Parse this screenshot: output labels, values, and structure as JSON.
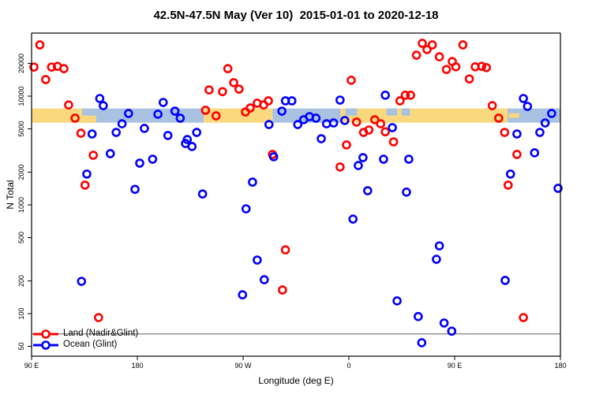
{
  "title": "42.5N-47.5N May (Ver 10)  2015-01-01 to 2020-12-18",
  "chart_data": {
    "type": "scatter",
    "title": "42.5N-47.5N May (Ver 10)  2015-01-01 to 2020-12-18",
    "xlabel": "Longitude (deg E)",
    "ylabel": "N Total",
    "x_axis": {
      "range": [
        90,
        540
      ],
      "note": "longitude axis wraps eastward: 90E > 180 > 90W > 0 > 90E > 180",
      "ticks": [
        {
          "value": 90,
          "label": "90 E"
        },
        {
          "value": 180,
          "label": "180"
        },
        {
          "value": 270,
          "label": "90 W"
        },
        {
          "value": 360,
          "label": "0"
        },
        {
          "value": 450,
          "label": "90 E"
        },
        {
          "value": 540,
          "label": "180"
        }
      ]
    },
    "y_axis": {
      "scale": "log",
      "range": [
        41,
        38000
      ],
      "ticks": [
        50,
        100,
        200,
        500,
        1000,
        2000,
        5000,
        10000,
        20000
      ]
    },
    "grid": false,
    "legend_position": "bottom-left",
    "reference_line": {
      "n": 65,
      "color": "#6e6e6e"
    },
    "mask_band": {
      "n_top": 7700,
      "n_bottom": 5700,
      "land_color": "#FAD87E",
      "ocean_color": "#A9C2E2",
      "segments": [
        {
          "from": 90,
          "to": 133,
          "surface": "land"
        },
        {
          "from": 133,
          "to": 236.5,
          "surface": "ocean"
        },
        {
          "from": 236.5,
          "to": 295,
          "surface": "land"
        },
        {
          "from": 295,
          "to": 353,
          "surface": "ocean"
        },
        {
          "from": 353,
          "to": 495,
          "surface": "land"
        },
        {
          "from": 495,
          "to": 540,
          "surface": "ocean"
        }
      ],
      "patches": [
        {
          "from": 133,
          "to": 145,
          "surface": "land",
          "part": "lower"
        },
        {
          "from": 357,
          "to": 367,
          "surface": "ocean",
          "part": "upper"
        },
        {
          "from": 392,
          "to": 401,
          "surface": "ocean",
          "part": "upper"
        },
        {
          "from": 405,
          "to": 412,
          "surface": "ocean",
          "part": "upper"
        },
        {
          "from": 496,
          "to": 505,
          "surface": "land",
          "part": "middle"
        }
      ]
    },
    "series": [
      {
        "name": "Land (Nadir&Glint)",
        "color": "#FF0000",
        "points": [
          [
            97,
            29600
          ],
          [
            92,
            18500
          ],
          [
            107,
            18500
          ],
          [
            112,
            18800
          ],
          [
            117.5,
            17900
          ],
          [
            102,
            14200
          ],
          [
            121.5,
            8300
          ],
          [
            127,
            6270
          ],
          [
            132,
            4560
          ],
          [
            241,
            11400
          ],
          [
            238,
            7410
          ],
          [
            257,
            17900
          ],
          [
            252.5,
            11000
          ],
          [
            262,
            13300
          ],
          [
            266.5,
            11600
          ],
          [
            247,
            6590
          ],
          [
            272,
            7160
          ],
          [
            276,
            7780
          ],
          [
            282,
            8610
          ],
          [
            287.5,
            8300
          ],
          [
            291.5,
            9050
          ],
          [
            362,
            14000
          ],
          [
            366.5,
            5770
          ],
          [
            377,
            4880
          ],
          [
            372.5,
            4640
          ],
          [
            382,
            6070
          ],
          [
            387,
            5570
          ],
          [
            391,
            4700
          ],
          [
            422.5,
            30600
          ],
          [
            431,
            29600
          ],
          [
            426.5,
            26800
          ],
          [
            457,
            29600
          ],
          [
            417.5,
            23800
          ],
          [
            437,
            23000
          ],
          [
            448,
            20800
          ],
          [
            443,
            17600
          ],
          [
            451,
            18600
          ],
          [
            467.5,
            18600
          ],
          [
            473,
            18800
          ],
          [
            477,
            18300
          ],
          [
            462.5,
            14400
          ],
          [
            403.5,
            9050
          ],
          [
            408,
            10200
          ],
          [
            412.5,
            10200
          ],
          [
            482,
            8180
          ],
          [
            487.5,
            6270
          ],
          [
            492.5,
            4640
          ],
          [
            142.5,
            2860
          ],
          [
            135.5,
            1520
          ],
          [
            358,
            3560
          ],
          [
            295,
            2910
          ],
          [
            352.5,
            2230
          ],
          [
            398,
            3800
          ],
          [
            503,
            2910
          ],
          [
            495.5,
            1520
          ],
          [
            147,
            92
          ],
          [
            306,
            386
          ],
          [
            303.5,
            165
          ],
          [
            508.5,
            92
          ]
        ]
      },
      {
        "name": "Ocean (Glint)",
        "color": "#0000FF",
        "points": [
          [
            148,
            9510
          ],
          [
            151,
            8180
          ],
          [
            202,
            8750
          ],
          [
            172.5,
            6930
          ],
          [
            197.5,
            6820
          ],
          [
            212,
            7280
          ],
          [
            216.5,
            6270
          ],
          [
            167,
            5570
          ],
          [
            162,
            4640
          ],
          [
            186,
            5050
          ],
          [
            141.5,
            4490
          ],
          [
            206,
            4350
          ],
          [
            222.5,
            3990
          ],
          [
            230.5,
            4640
          ],
          [
            306,
            9050
          ],
          [
            311.5,
            9050
          ],
          [
            303,
            7280
          ],
          [
            352.5,
            9200
          ],
          [
            316.5,
            5480
          ],
          [
            321.5,
            6070
          ],
          [
            326.5,
            6480
          ],
          [
            332,
            6270
          ],
          [
            292,
            5480
          ],
          [
            341,
            5570
          ],
          [
            347,
            5670
          ],
          [
            356.5,
            5970
          ],
          [
            336.5,
            4060
          ],
          [
            391,
            10200
          ],
          [
            508.5,
            9510
          ],
          [
            512,
            8050
          ],
          [
            532.5,
            6930
          ],
          [
            527,
            5670
          ],
          [
            397,
            5130
          ],
          [
            503,
            4490
          ],
          [
            522.5,
            4640
          ],
          [
            157,
            2960
          ],
          [
            221,
            3670
          ],
          [
            226.5,
            3440
          ],
          [
            182,
            2420
          ],
          [
            193,
            2630
          ],
          [
            137,
            1920
          ],
          [
            178,
            1390
          ],
          [
            235.5,
            1260
          ],
          [
            296,
            2770
          ],
          [
            368,
            2300
          ],
          [
            372,
            2720
          ],
          [
            389.5,
            2630
          ],
          [
            278,
            1620
          ],
          [
            376,
            1350
          ],
          [
            272.5,
            920
          ],
          [
            363.5,
            740
          ],
          [
            411,
            2630
          ],
          [
            518,
            3010
          ],
          [
            497.5,
            1920
          ],
          [
            538,
            1420
          ],
          [
            409,
            1310
          ],
          [
            437,
            420
          ],
          [
            132.5,
            198
          ],
          [
            282,
            311
          ],
          [
            288,
            205
          ],
          [
            269.5,
            149
          ],
          [
            434.5,
            316
          ],
          [
            493,
            202
          ],
          [
            401,
            131
          ],
          [
            419,
            94
          ],
          [
            441,
            82
          ],
          [
            447.5,
            69
          ],
          [
            422,
            54
          ]
        ]
      }
    ]
  }
}
